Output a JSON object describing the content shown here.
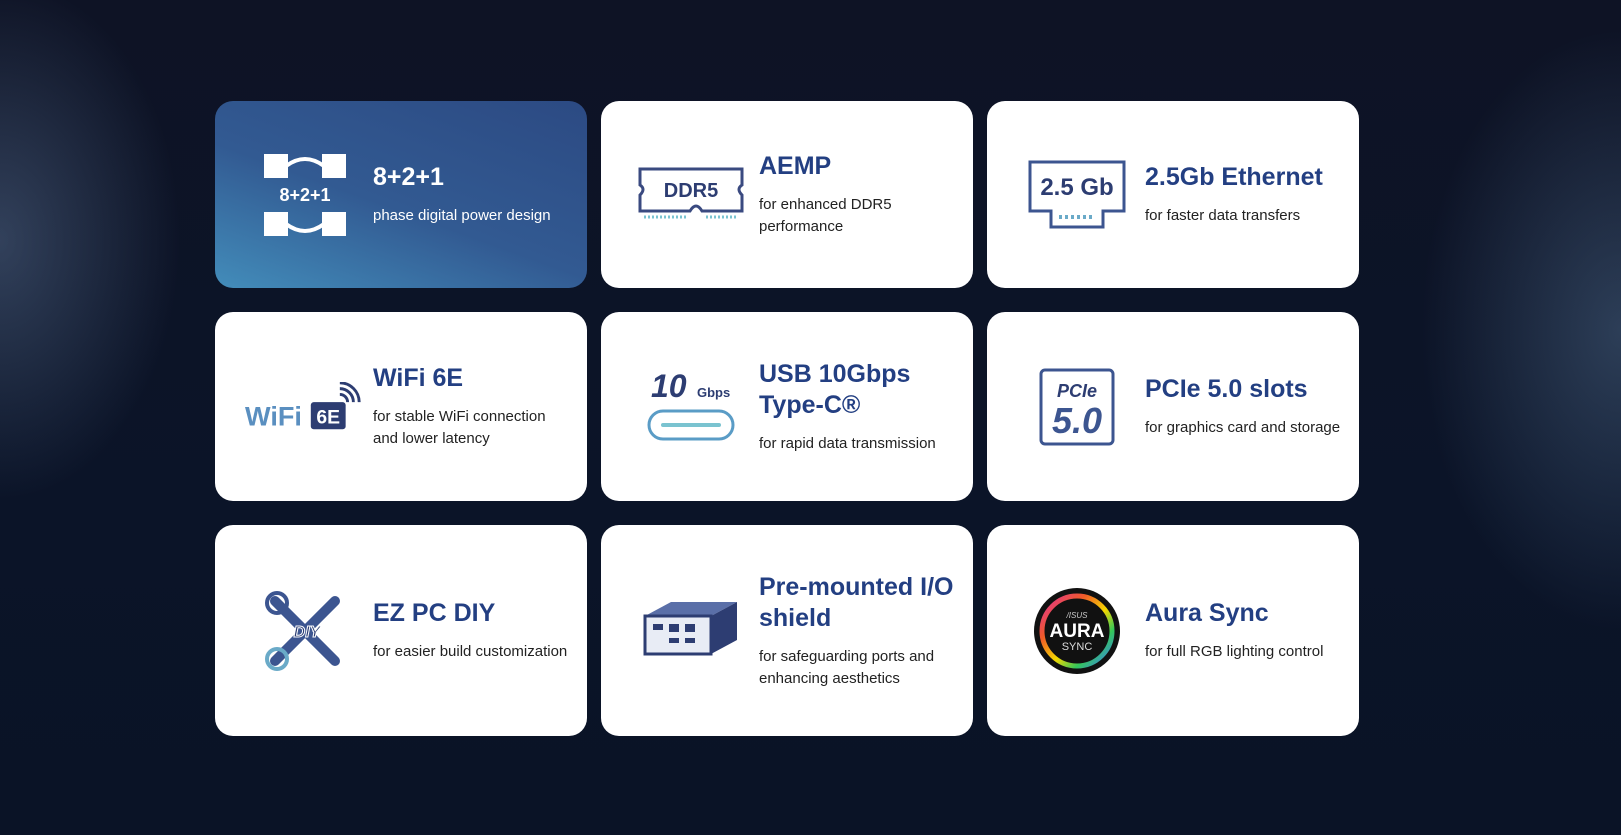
{
  "features": [
    {
      "title": "8+2+1",
      "desc": "phase digital power design",
      "icon": "power-phase-icon",
      "icon_text": "8+2+1"
    },
    {
      "title": "AEMP",
      "desc": "for enhanced DDR5 performance",
      "icon": "ddr5-memory-icon",
      "icon_text": "DDR5"
    },
    {
      "title": "2.5Gb Ethernet",
      "desc": "for faster data transfers",
      "icon": "ethernet-port-icon",
      "icon_text": "2.5 Gb"
    },
    {
      "title": "WiFi 6E",
      "desc": "for stable WiFi connection and lower latency",
      "icon": "wifi-6e-icon",
      "icon_text": "WiFi",
      "icon_text2": "6E"
    },
    {
      "title": "USB 10Gbps Type-C®",
      "desc": "for rapid data transmission",
      "icon": "usb-c-icon",
      "icon_text": "10",
      "icon_text2": "Gbps"
    },
    {
      "title": "PCIe 5.0 slots",
      "desc": "for graphics card and storage",
      "icon": "pcie-icon",
      "icon_text": "PCIe",
      "icon_text2": "5.0"
    },
    {
      "title": "EZ PC DIY",
      "desc": "for easier build customization",
      "icon": "diy-tools-icon",
      "icon_text": "DIY"
    },
    {
      "title": "Pre-mounted I/O shield",
      "desc": "for safeguarding ports and enhancing aesthetics",
      "icon": "io-shield-icon"
    },
    {
      "title": "Aura Sync",
      "desc": "for full RGB lighting control",
      "icon": "aura-sync-logo",
      "icon_text": "AURA",
      "icon_text2": "SYNC",
      "icon_text3": "/ISUS"
    }
  ],
  "colors": {
    "title": "#233f82",
    "highlight_card": "#325a92"
  }
}
